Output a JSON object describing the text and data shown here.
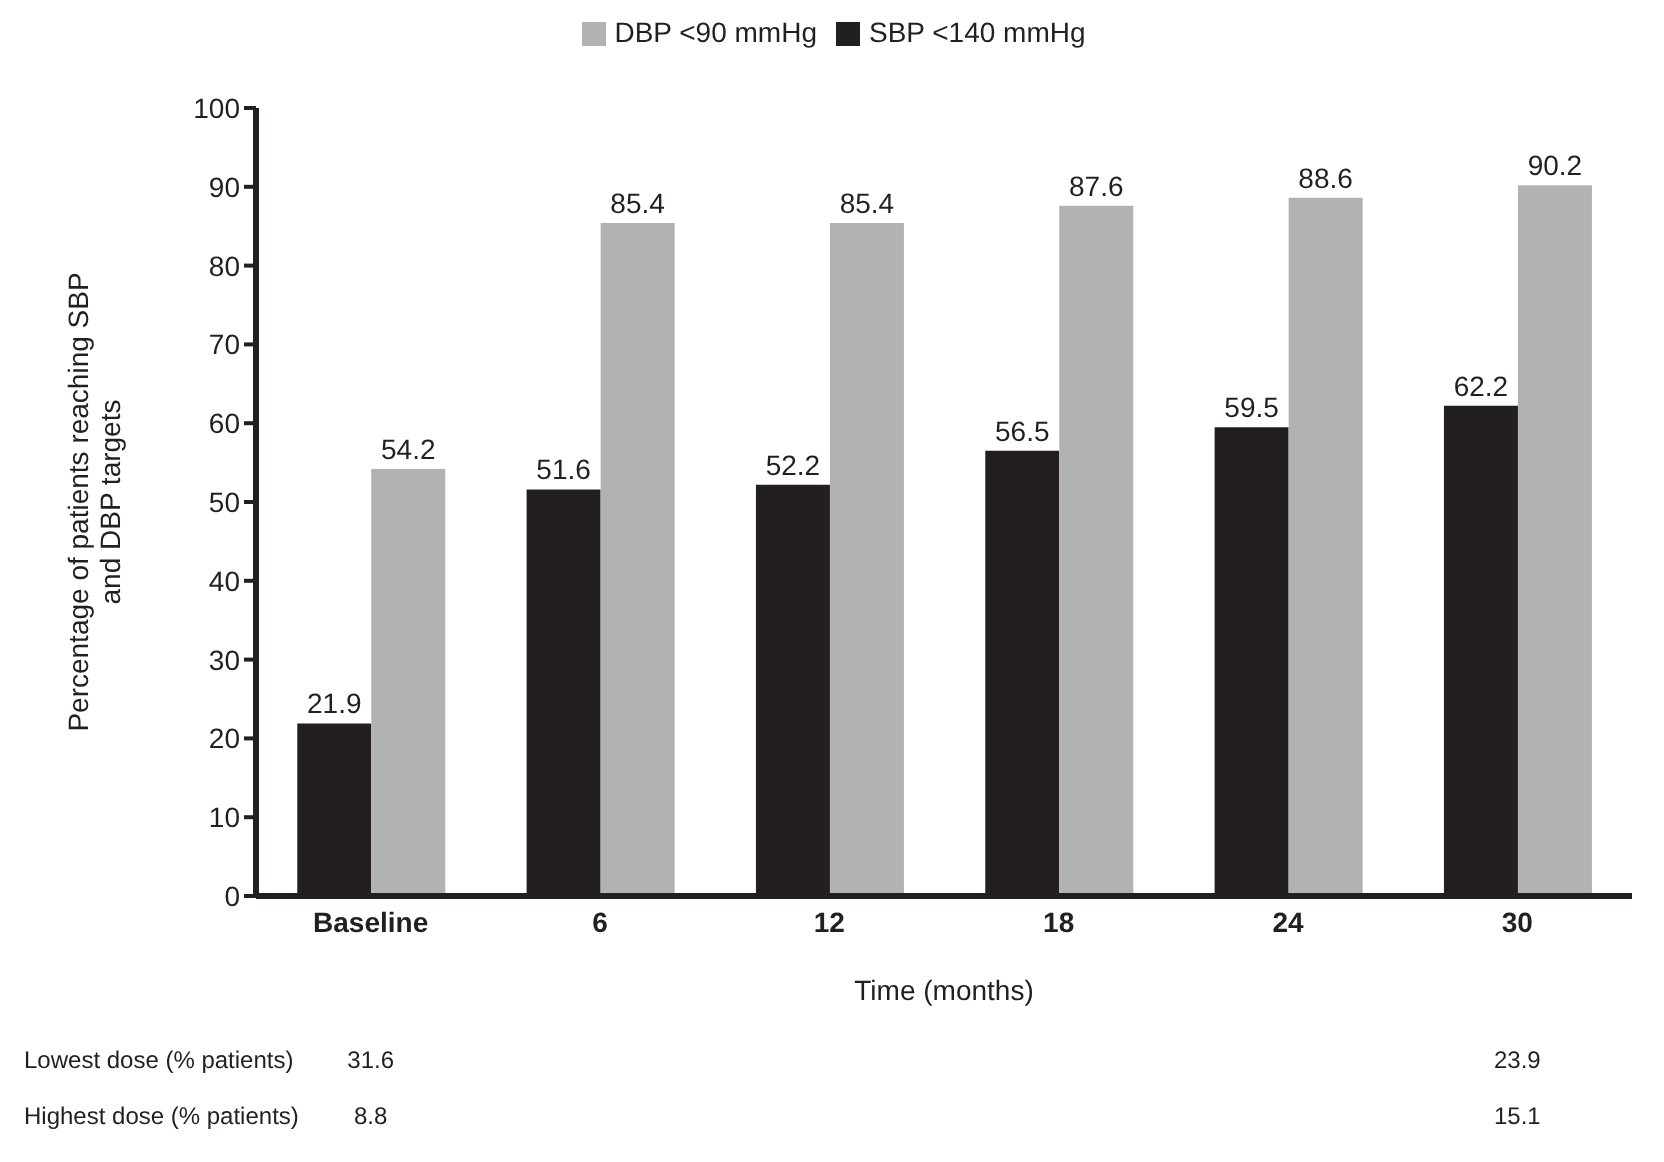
{
  "chart_data": {
    "type": "bar",
    "xlabel": "Time (months)",
    "ylabel": "Percentage of patients reaching SBP and DBP targets",
    "categories": [
      "Baseline",
      "6",
      "12",
      "18",
      "24",
      "30"
    ],
    "series": [
      {
        "name": "SBP <140 mmHg",
        "color": "#231f20",
        "values": [
          21.9,
          51.6,
          52.2,
          56.5,
          59.5,
          62.2
        ]
      },
      {
        "name": "DBP <90 mmHg",
        "color": "#b1b2b4",
        "values": [
          54.2,
          85.4,
          85.4,
          87.6,
          88.6,
          90.2
        ]
      }
    ],
    "ylim": [
      0,
      100
    ],
    "yticks": [
      0,
      10,
      20,
      30,
      40,
      50,
      60,
      70,
      80,
      90,
      100
    ],
    "grid": false,
    "legend": "top",
    "data_labels": true,
    "annotations": [
      "Lowest dose (% patients)",
      "31.6",
      "23.9",
      "Highest dose (% patients)",
      "8.8",
      "15.1"
    ]
  }
}
